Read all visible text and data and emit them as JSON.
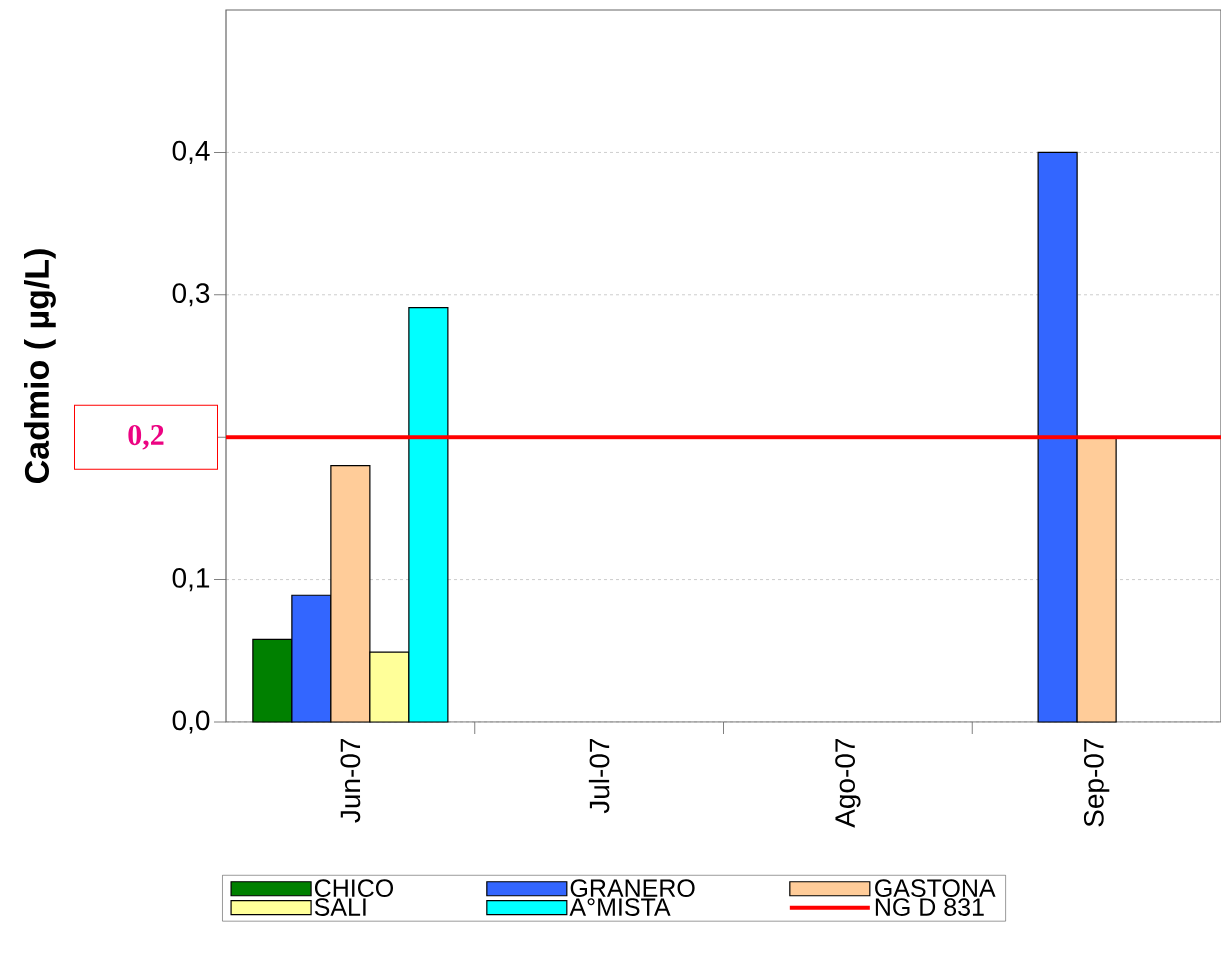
{
  "chart_data": {
    "type": "bar",
    "ylabel": "Cadmio ( µg/L)",
    "categories": [
      "Jun-07",
      "Jul-07",
      "Ago-07",
      "Sep-07"
    ],
    "series": [
      {
        "name": "CHICO",
        "color": "#008000",
        "values": [
          0.058,
          null,
          null,
          null
        ]
      },
      {
        "name": "GRANERO",
        "color": "#3366ff",
        "values": [
          0.089,
          null,
          null,
          0.4
        ]
      },
      {
        "name": "GASTONA",
        "color": "#ffcc99",
        "values": [
          0.18,
          null,
          null,
          0.2
        ]
      },
      {
        "name": "SALI",
        "color": "#ffff99",
        "values": [
          0.049,
          null,
          null,
          null
        ]
      },
      {
        "name": "A°MISTA",
        "color": "#00ffff",
        "values": [
          0.291,
          null,
          null,
          null
        ]
      }
    ],
    "ylim": [
      0,
      0.5
    ],
    "yticks": [
      {
        "value": 0,
        "label": "0,0"
      },
      {
        "value": 0.1,
        "label": "0,1"
      },
      {
        "value": 0.2,
        "label": null
      },
      {
        "value": 0.3,
        "label": "0,3"
      },
      {
        "value": 0.4,
        "label": "0,4"
      }
    ],
    "ref_lines": [
      {
        "axis": "y",
        "value": 0.2,
        "label": "NG D 831",
        "color": "#ff0000"
      }
    ],
    "annotations": [
      "0,2"
    ],
    "grid": "y",
    "legend": "bottom"
  }
}
